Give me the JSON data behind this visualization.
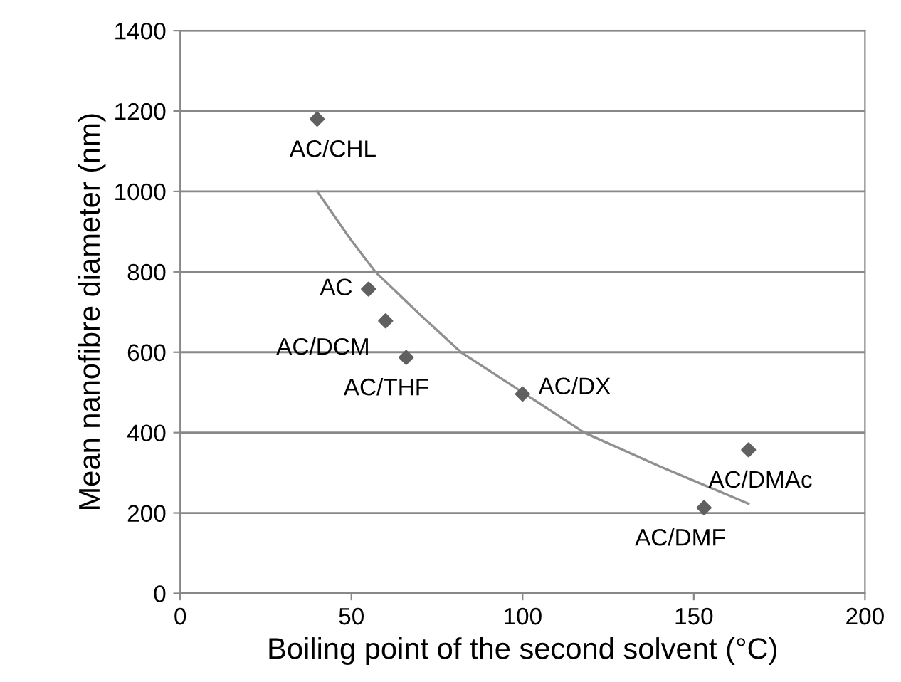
{
  "chart_data": {
    "type": "scatter",
    "xlabel": "Boiling point of the second solvent (°C)",
    "ylabel": "Mean nanofibre diameter (nm)",
    "xlim": [
      0,
      200
    ],
    "xticks": [
      0,
      50,
      100,
      150,
      200
    ],
    "ylim": [
      0,
      1400
    ],
    "yticks": [
      0,
      200,
      400,
      600,
      800,
      1000,
      1200,
      1400
    ],
    "grid": "y",
    "legend": false,
    "marker": "diamond",
    "series": [
      {
        "color": "#606060",
        "x": [
          40,
          55,
          60,
          66,
          100,
          153,
          166
        ],
        "values": [
          1180,
          757,
          678,
          587,
          496,
          213,
          357
        ]
      },
      {
        "type": "line",
        "color": "#909090",
        "marker": "none",
        "x": [
          40,
          50,
          57,
          70,
          82,
          100,
          118,
          140,
          166
        ],
        "values": [
          1000,
          878,
          800,
          694,
          600,
          500,
          400,
          316,
          223
        ]
      }
    ],
    "annotations": [
      {
        "text": "AC/CHL",
        "x": 40,
        "y": 1180
      },
      {
        "text": "AC",
        "x": 55,
        "y": 757
      },
      {
        "text": "AC/DCM",
        "x": 60,
        "y": 678
      },
      {
        "text": "AC/THF",
        "x": 66,
        "y": 587
      },
      {
        "text": "AC/DX",
        "x": 100,
        "y": 496
      },
      {
        "text": "AC/DMF",
        "x": 153,
        "y": 213
      },
      {
        "text": "AC/DMAc",
        "x": 166,
        "y": 357
      }
    ]
  }
}
